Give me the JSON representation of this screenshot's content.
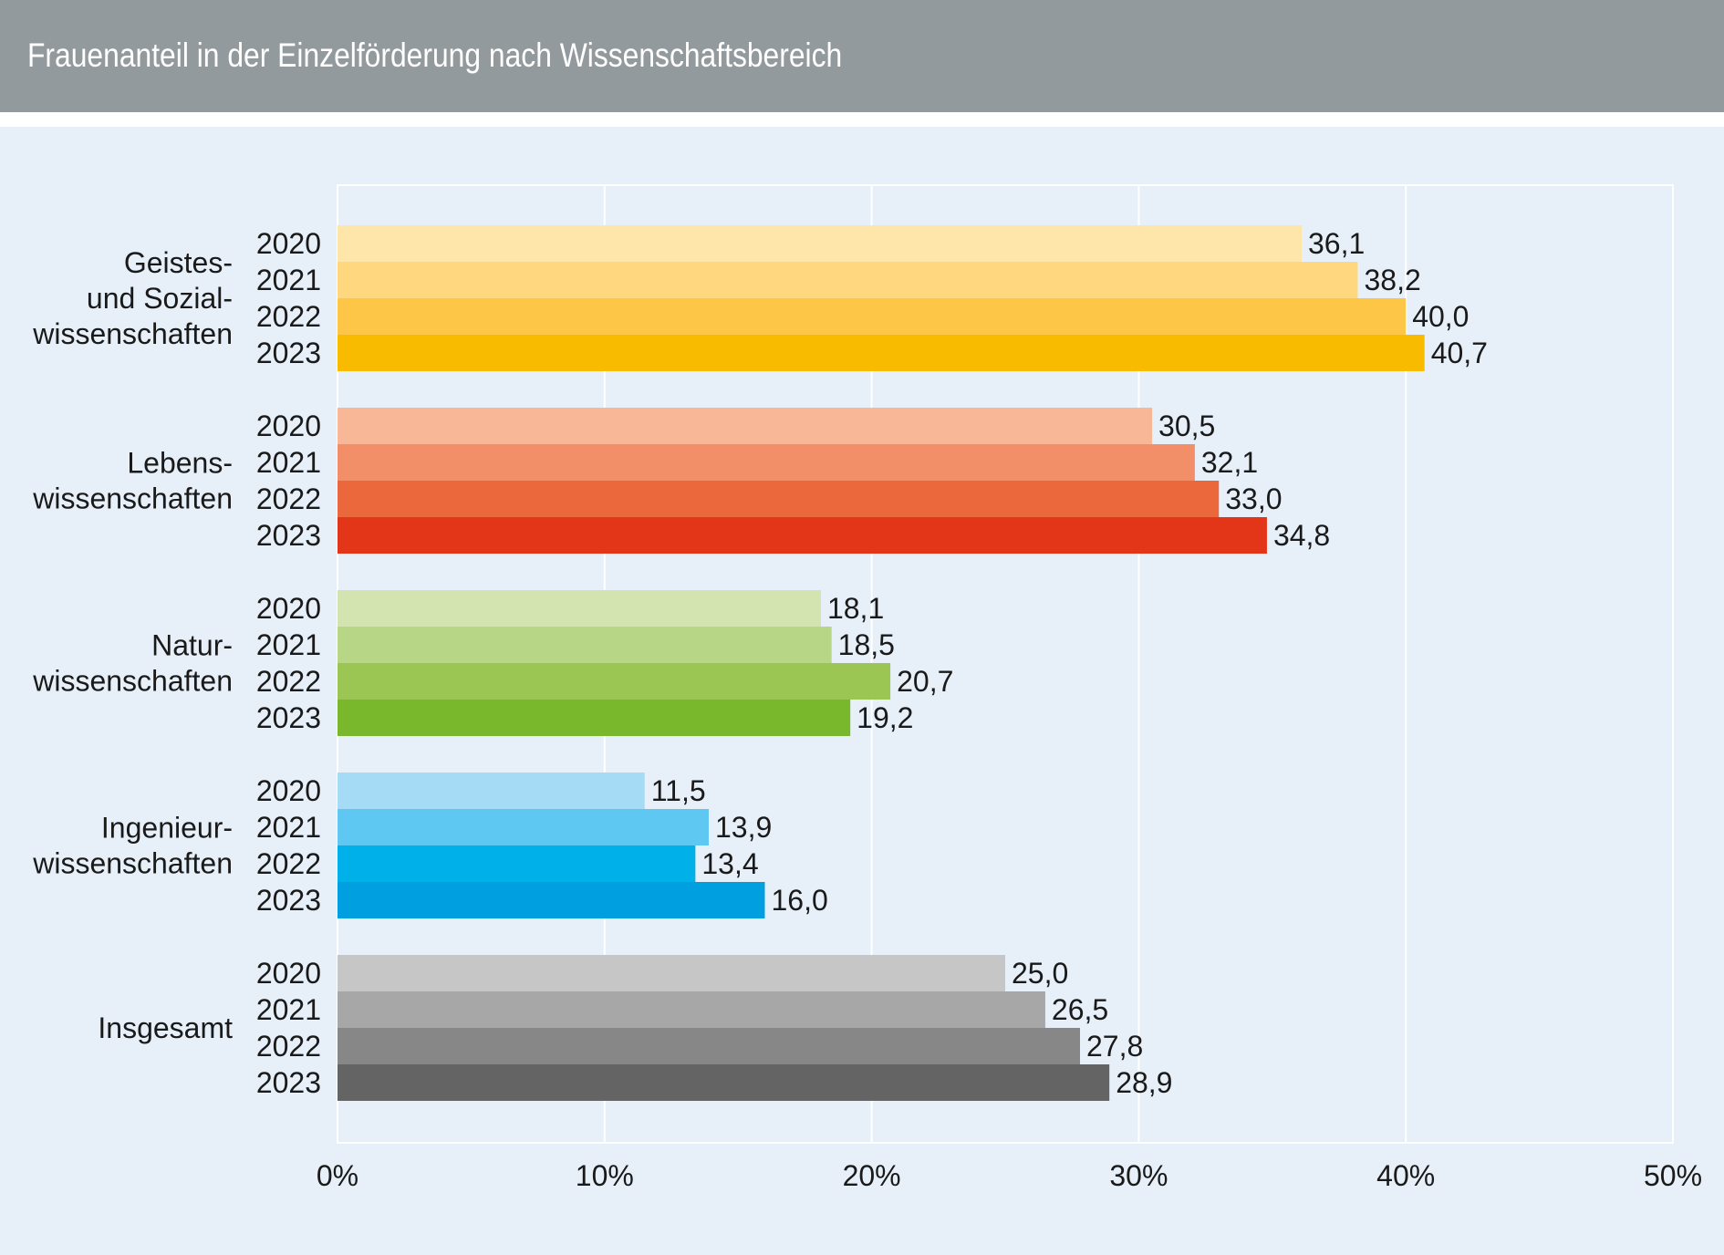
{
  "title": "Frauenanteil in der Einzelförderung nach Wissenschaftsbereich",
  "chart_data": {
    "type": "bar",
    "orientation": "horizontal",
    "title": "Frauenanteil in der Einzelförderung nach Wissenschaftsbereich",
    "xlim": [
      0,
      50
    ],
    "x_ticks": [
      "0%",
      "10%",
      "20%",
      "30%",
      "40%",
      "50%"
    ],
    "grid": true,
    "legend": "none",
    "years": [
      "2020",
      "2021",
      "2022",
      "2023"
    ],
    "groups": [
      {
        "label_lines": [
          "Geistes-",
          "und Sozial-",
          "wissenschaften"
        ],
        "colors": [
          "#fee6ab",
          "#fed77e",
          "#fdc646",
          "#f9bb00"
        ],
        "values": [
          36.1,
          38.2,
          40.0,
          40.7
        ],
        "value_labels": [
          "36,1",
          "38,2",
          "40,0",
          "40,7"
        ]
      },
      {
        "label_lines": [
          "Lebens-",
          "wissenschaften"
        ],
        "colors": [
          "#f8b796",
          "#f28f69",
          "#eb673c",
          "#e33518"
        ],
        "values": [
          30.5,
          32.1,
          33.0,
          34.8
        ],
        "value_labels": [
          "30,5",
          "32,1",
          "33,0",
          "34,8"
        ]
      },
      {
        "label_lines": [
          "Natur-",
          "wissenschaften"
        ],
        "colors": [
          "#d3e4b0",
          "#b7d686",
          "#9cc653",
          "#79b82c"
        ],
        "values": [
          18.1,
          18.5,
          20.7,
          19.2
        ],
        "value_labels": [
          "18,1",
          "18,5",
          "20,7",
          "19,2"
        ]
      },
      {
        "label_lines": [
          "Ingenieur-",
          "wissenschaften"
        ],
        "colors": [
          "#a6dbf6",
          "#5ec7f2",
          "#00b0e9",
          "#009fe0"
        ],
        "values": [
          11.5,
          13.9,
          13.4,
          16.0
        ],
        "value_labels": [
          "11,5",
          "13,9",
          "13,4",
          "16,0"
        ]
      },
      {
        "label_lines": [
          "Insgesamt"
        ],
        "colors": [
          "#c6c6c6",
          "#a7a7a7",
          "#878787",
          "#646464"
        ],
        "values": [
          25.0,
          26.5,
          27.8,
          28.9
        ],
        "value_labels": [
          "25,0",
          "26,5",
          "27,8",
          "28,9"
        ]
      }
    ]
  }
}
